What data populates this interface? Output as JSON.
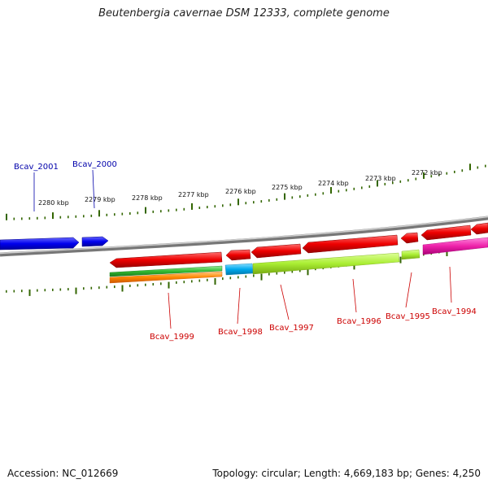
{
  "title": "Beutenbergia cavernae DSM 12333, complete genome",
  "footer": {
    "accession": "Accession: NC_012669",
    "summary": "Topology: circular; Length: 4,669,183 bp; Genes: 4,250"
  },
  "ruler_labels": [
    "2280 kbp",
    "2279 kbp",
    "2278 kbp",
    "2277 kbp",
    "2276 kbp",
    "2275 kbp",
    "2274 kbp",
    "2273 kbp",
    "2272 kbp"
  ],
  "gene_labels": {
    "top": [
      "Bcav_2001",
      "Bcav_2000"
    ],
    "bottom": [
      "Bcav_1999",
      "Bcav_1998",
      "Bcav_1997",
      "Bcav_1996",
      "Bcav_1995",
      "Bcav_1994"
    ]
  },
  "colors": {
    "forward_gene": "#0000ee",
    "reverse_gene": "#ee0000",
    "top_label": "#0000aa",
    "bottom_label": "#cc0000",
    "tick": "#336600",
    "backbone": "#808080",
    "green_feature": "#33bb33",
    "orange_feature": "#ff8800",
    "cyan_feature": "#00aaee",
    "lime_feature": "#aaee33",
    "magenta_feature": "#ee22aa"
  }
}
